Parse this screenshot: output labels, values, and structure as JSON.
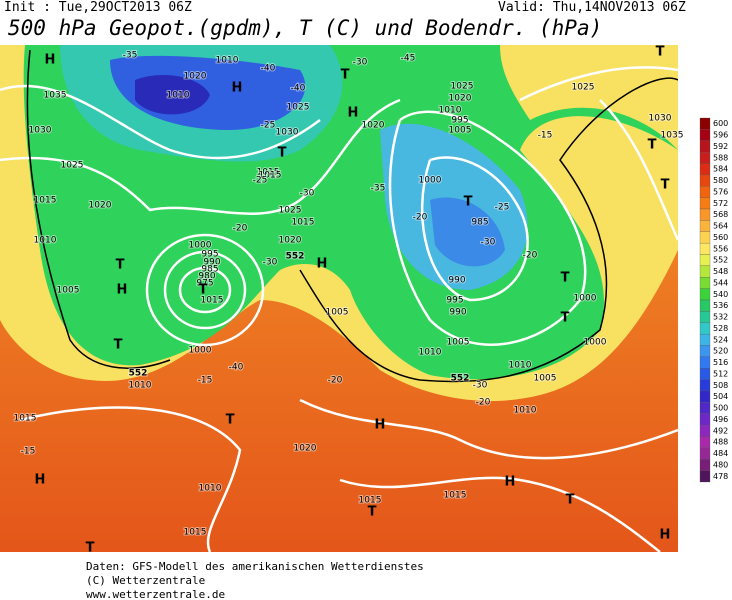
{
  "header": {
    "init": "Init : Tue,29OCT2013 06Z",
    "valid": "Valid: Thu,14NOV2013 06Z",
    "title": "500 hPa Geopot.(gpdm), T (C) und Bodendr. (hPa)"
  },
  "map": {
    "labels": [
      "H",
      "1035",
      "1030",
      "1025",
      "1015",
      "1020",
      "1010",
      "T",
      "H",
      "1005",
      "T",
      "1000",
      "1010",
      "1015",
      "H",
      "T",
      "T",
      "1010",
      "1015",
      "1020",
      "H",
      "1015",
      "T",
      "1015",
      "H",
      "T",
      "H",
      "1010",
      "1010",
      "1005",
      "1000",
      "T",
      "1000",
      "T",
      "985",
      "T",
      "990",
      "995",
      "990",
      "1000",
      "995",
      "1005",
      "1010",
      "1020",
      "1025",
      "1025",
      "T",
      "1030",
      "1035",
      "T",
      "T",
      "1010",
      "H",
      "T",
      "1020",
      "1025",
      "1030",
      "T",
      "1015",
      "1015",
      "1020",
      "1010",
      "H",
      "1020",
      "1015",
      "1025",
      "H",
      "1005",
      "1000",
      "995",
      "990",
      "985",
      "980",
      "975",
      "T",
      "1015",
      "1010",
      "1005",
      "-40",
      "-35",
      "-40",
      "-40",
      "-45",
      "-25",
      "-25",
      "-20",
      "-30",
      "-30",
      "-35",
      "-30",
      "-20",
      "-25",
      "-30",
      "-20",
      "-15",
      "-20",
      "-15",
      "-15",
      "-20",
      "552",
      "552",
      "552",
      "-30"
    ]
  },
  "colorbar": {
    "values": [
      600,
      596,
      592,
      588,
      584,
      580,
      576,
      572,
      568,
      564,
      560,
      556,
      552,
      548,
      544,
      540,
      536,
      532,
      528,
      524,
      520,
      516,
      512,
      508,
      504,
      500,
      496,
      492,
      488,
      484,
      480,
      478
    ],
    "colors": [
      "#8b0000",
      "#a50014",
      "#b8141e",
      "#c81e1e",
      "#dc2d14",
      "#e6460f",
      "#f0640f",
      "#f57d14",
      "#f89628",
      "#fab43c",
      "#fcd250",
      "#fde664",
      "#e6f050",
      "#b4e63c",
      "#78dc32",
      "#3cd23c",
      "#28c864",
      "#28c896",
      "#32c8c8",
      "#3cb4e6",
      "#3c96f0",
      "#3278f0",
      "#285ae6",
      "#283cdc",
      "#3228c8",
      "#5028c8",
      "#6e28c8",
      "#8c28be",
      "#aa28aa",
      "#962896",
      "#781e78",
      "#50145a"
    ]
  },
  "footer": {
    "line1": "Daten: GFS-Modell des amerikanischen Wetterdienstes",
    "line2": "(C) Wetterzentrale",
    "line3": "www.wetterzentrale.de"
  }
}
